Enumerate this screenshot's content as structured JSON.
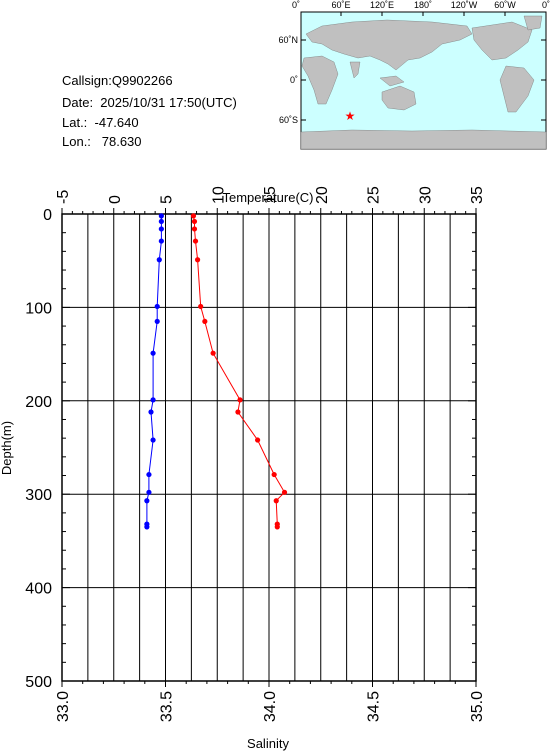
{
  "header": {
    "callsign": "Callsign:Q9902266",
    "date": "Date:  2025/10/31 17:50(UTC)",
    "lat": "Lat.:  -47.640",
    "lon": "Lon.:   78.630"
  },
  "map": {
    "lon_labels": [
      "0˚",
      "60˚E",
      "120˚E",
      "180˚",
      "120˚W",
      "60˚W",
      "0˚"
    ],
    "lat_labels": [
      "60˚N",
      "0˚",
      "60˚S"
    ],
    "station_marker": "star",
    "colors": {
      "ocean": "#ccffff",
      "land": "#c0c0c0",
      "marker": "#ff0000"
    }
  },
  "chart_data": {
    "type": "line",
    "title": "",
    "temperature_axis": {
      "label": "Temperature(C)",
      "range": [
        -5,
        35
      ],
      "ticks": [
        "-5",
        "0",
        "5",
        "10",
        "15",
        "20",
        "25",
        "30",
        "35"
      ]
    },
    "salinity_axis": {
      "label": "Salinity",
      "range": [
        33.0,
        35.0
      ],
      "ticks": [
        "33.0",
        "33.5",
        "34.0",
        "34.5",
        "35.0"
      ]
    },
    "depth_axis": {
      "label": "Depth(m)",
      "range": [
        0,
        500
      ],
      "inverted": true,
      "ticks": [
        "0",
        "100",
        "200",
        "300",
        "400",
        "500"
      ]
    },
    "grid": true,
    "series": [
      {
        "name": "Temperature",
        "axis": "temperature",
        "color": "#ff0000",
        "points": [
          {
            "value": 7.7,
            "depth": 2
          },
          {
            "value": 7.8,
            "depth": 8
          },
          {
            "value": 7.8,
            "depth": 16
          },
          {
            "value": 7.9,
            "depth": 29
          },
          {
            "value": 8.1,
            "depth": 49
          },
          {
            "value": 8.4,
            "depth": 99
          },
          {
            "value": 8.8,
            "depth": 115
          },
          {
            "value": 9.6,
            "depth": 149
          },
          {
            "value": 12.2,
            "depth": 199
          },
          {
            "value": 12.0,
            "depth": 212
          },
          {
            "value": 13.9,
            "depth": 242
          },
          {
            "value": 15.5,
            "depth": 279
          },
          {
            "value": 16.5,
            "depth": 298
          },
          {
            "value": 15.7,
            "depth": 307
          },
          {
            "value": 15.8,
            "depth": 332
          },
          {
            "value": 15.8,
            "depth": 335
          }
        ]
      },
      {
        "name": "Salinity",
        "axis": "salinity",
        "color": "#0000ff",
        "points": [
          {
            "value": 33.48,
            "depth": 2
          },
          {
            "value": 33.48,
            "depth": 8
          },
          {
            "value": 33.48,
            "depth": 16
          },
          {
            "value": 33.48,
            "depth": 29
          },
          {
            "value": 33.47,
            "depth": 49
          },
          {
            "value": 33.46,
            "depth": 99
          },
          {
            "value": 33.46,
            "depth": 115
          },
          {
            "value": 33.44,
            "depth": 149
          },
          {
            "value": 33.44,
            "depth": 199
          },
          {
            "value": 33.43,
            "depth": 212
          },
          {
            "value": 33.44,
            "depth": 242
          },
          {
            "value": 33.42,
            "depth": 279
          },
          {
            "value": 33.42,
            "depth": 298
          },
          {
            "value": 33.41,
            "depth": 307
          },
          {
            "value": 33.41,
            "depth": 332
          },
          {
            "value": 33.41,
            "depth": 335
          }
        ]
      }
    ]
  }
}
